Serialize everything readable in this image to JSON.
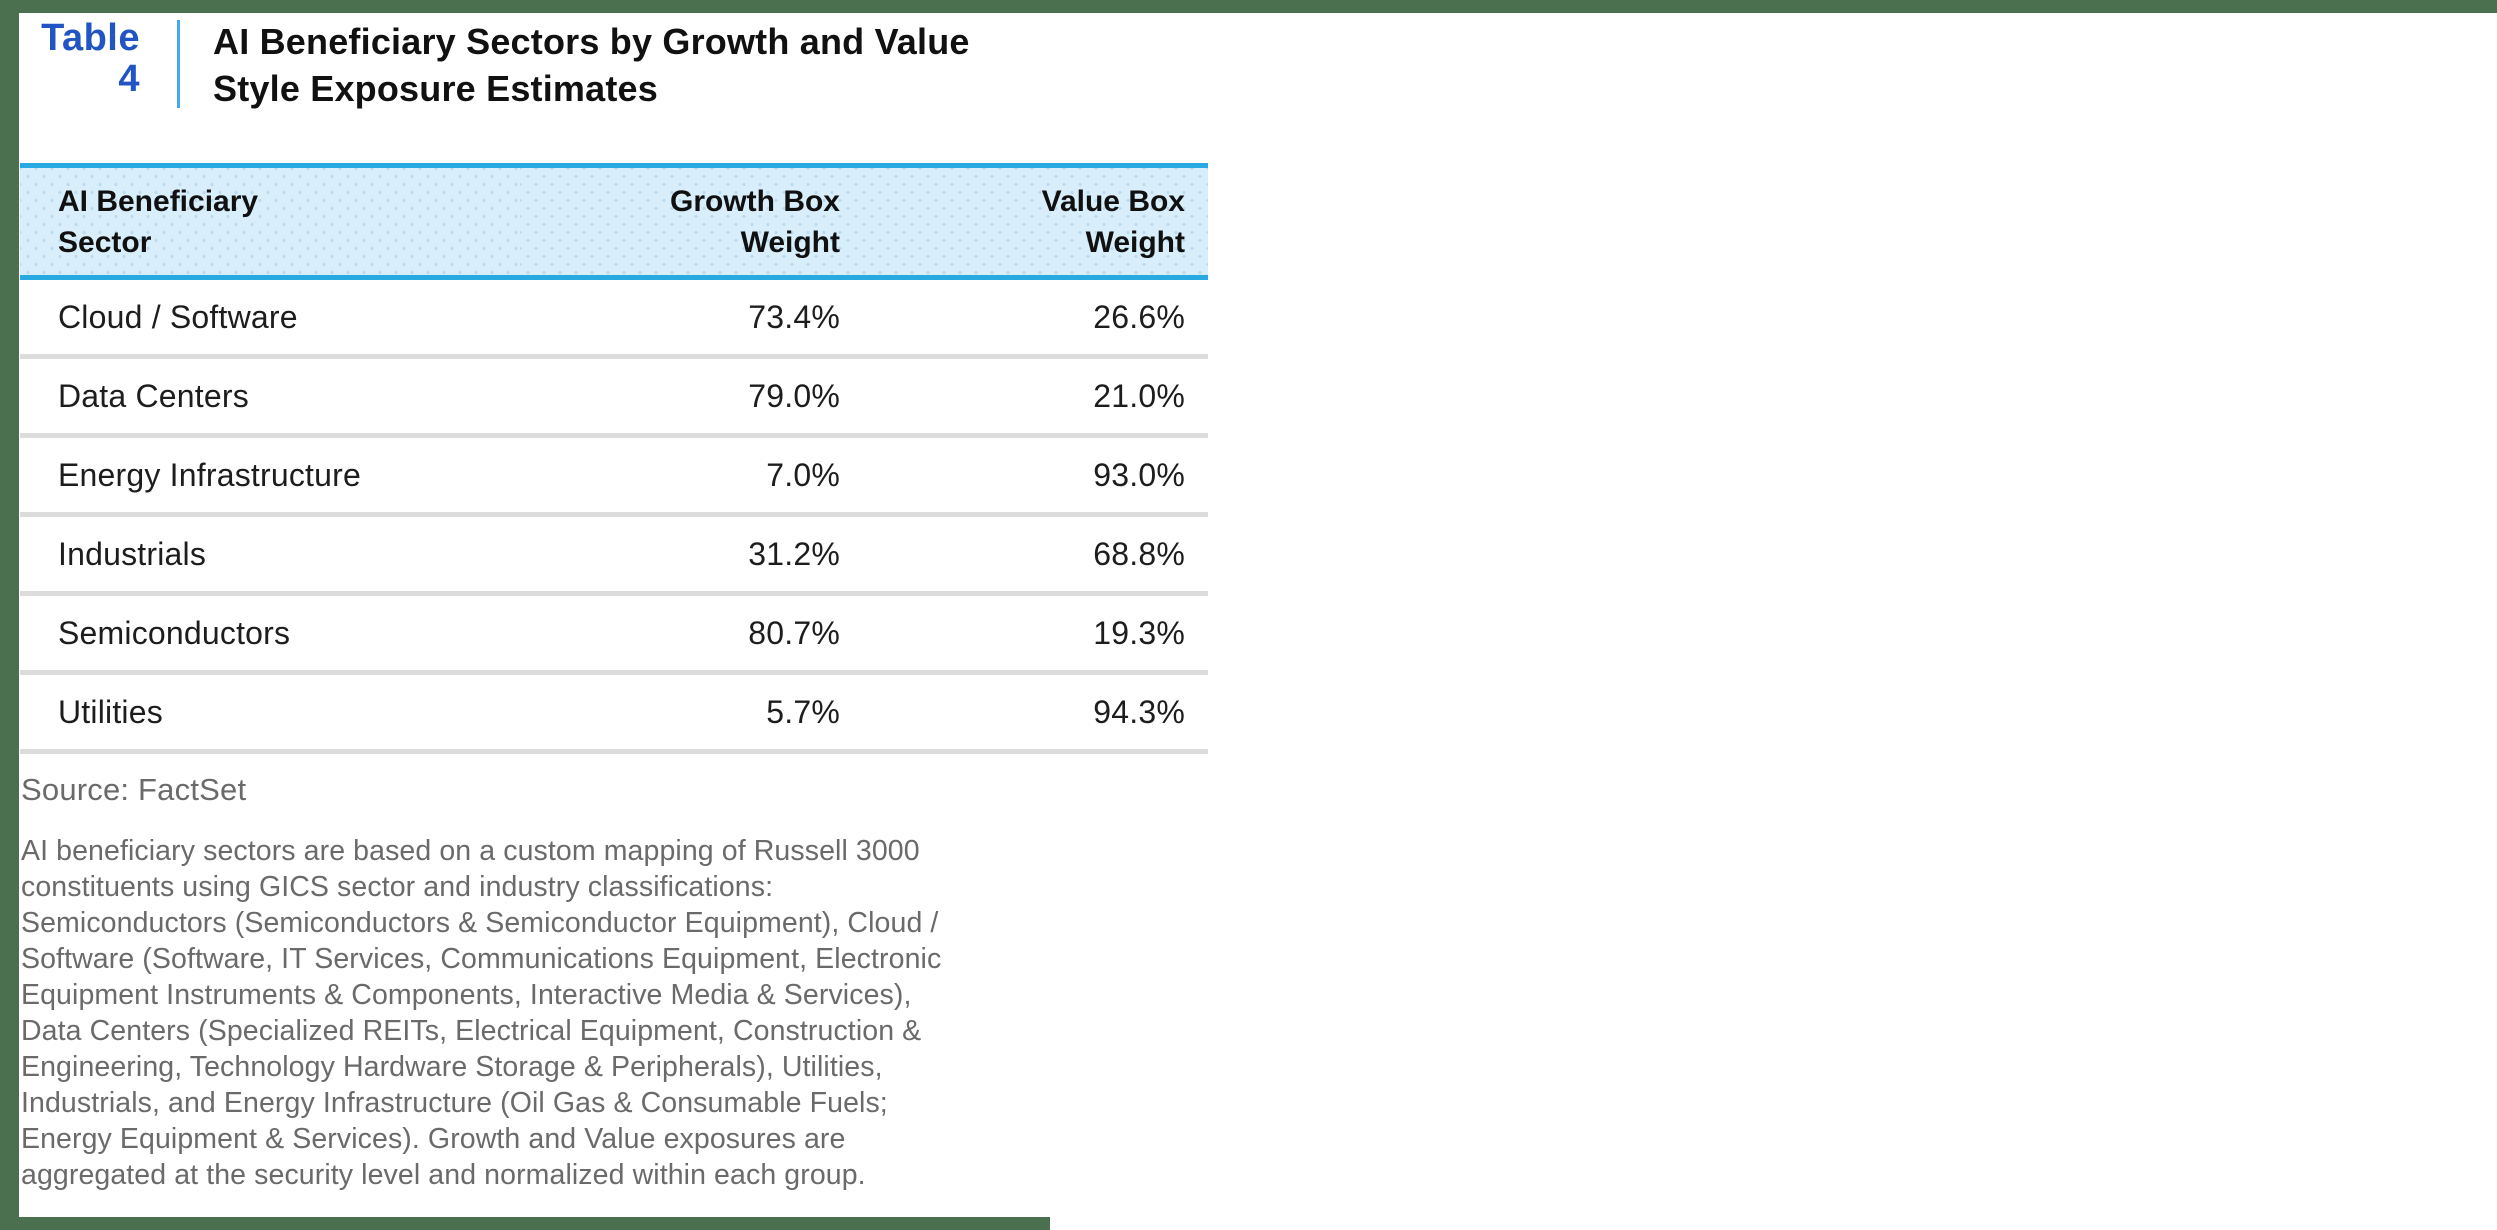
{
  "accents": {
    "frame_green": "#4A7050",
    "label_blue": "#2255C4",
    "divider_blue": "#44AAEE",
    "header_border_blue": "#29A9E2",
    "header_bg_blue": "#D8EEFB"
  },
  "table_label": {
    "word": "Table",
    "number": "4"
  },
  "title": {
    "line1": "AI Beneficiary Sectors by Growth and Value",
    "line2": "Style Exposure Estimates"
  },
  "table": {
    "columns": [
      {
        "line1": "AI Beneficiary",
        "line2": "Sector"
      },
      {
        "line1": "Growth Box",
        "line2": "Weight"
      },
      {
        "line1": "Value Box",
        "line2": "Weight"
      }
    ],
    "rows": [
      {
        "sector": "Cloud / Software",
        "growth": "73.4%",
        "value": "26.6%"
      },
      {
        "sector": "Data Centers",
        "growth": "79.0%",
        "value": "21.0%"
      },
      {
        "sector": "Energy Infrastructure",
        "growth": "7.0%",
        "value": "93.0%"
      },
      {
        "sector": "Industrials",
        "growth": "31.2%",
        "value": "68.8%"
      },
      {
        "sector": "Semiconductors",
        "growth": "80.7%",
        "value": "19.3%"
      },
      {
        "sector": "Utilities",
        "growth": "5.7%",
        "value": "94.3%"
      }
    ]
  },
  "source": {
    "text": "Source: FactSet"
  },
  "footnote": {
    "lines": [
      "AI beneficiary sectors are based on a custom mapping of Russell 3000",
      "constituents using GICS sector and industry classifications:",
      "Semiconductors (Semiconductors & Semiconductor Equipment), Cloud /",
      "Software (Software, IT Services, Communications Equipment, Electronic",
      "Equipment Instruments & Components, Interactive Media & Services),",
      "Data Centers (Specialized REITs, Electrical Equipment, Construction &",
      "Engineering, Technology Hardware Storage & Peripherals), Utilities,",
      "Industrials, and Energy Infrastructure (Oil Gas & Consumable Fuels;",
      "Energy Equipment & Services). Growth and Value exposures are",
      "aggregated at the security level and normalized within each group."
    ]
  }
}
